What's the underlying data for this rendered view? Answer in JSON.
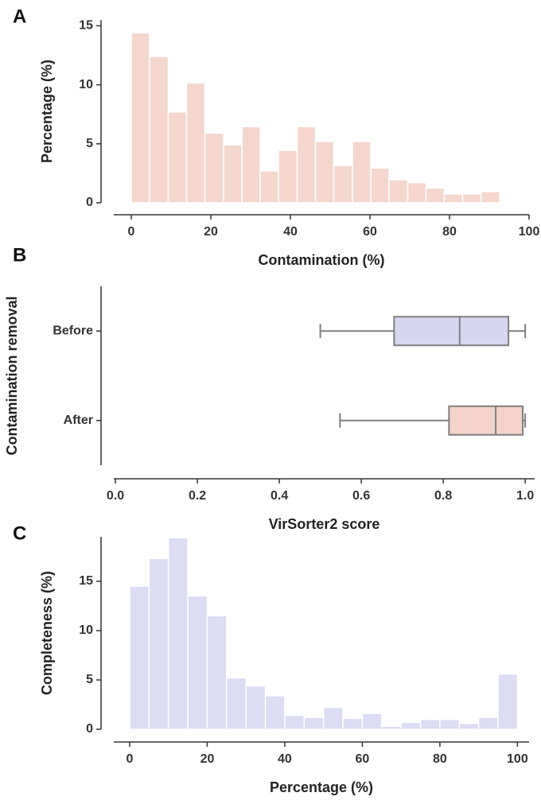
{
  "chart_data": [
    {
      "type": "histogram",
      "panel": "A",
      "xlabel": "Contamination (%)",
      "ylabel": "Percentage (%)",
      "color": "#f5d6cd",
      "bins": [
        0,
        4.6,
        9.3,
        13.9,
        18.5,
        23.2,
        27.8,
        32.4,
        37.0,
        41.7,
        46.3,
        50.9,
        55.6,
        60.2,
        64.8,
        69.5,
        74.1,
        78.7,
        83.3,
        88.0,
        92.6
      ],
      "values": [
        14.4,
        12.4,
        7.7,
        10.15,
        5.9,
        4.9,
        6.45,
        2.7,
        4.45,
        6.45,
        5.2,
        3.15,
        5.2,
        2.95,
        1.95,
        1.7,
        1.25,
        0.75,
        0.75,
        0.95
      ],
      "xlim": [
        -4.4,
        100
      ],
      "xticks": [
        0,
        20,
        40,
        60,
        80,
        100
      ],
      "ylim": [
        0,
        15.5
      ],
      "yticks": [
        0,
        5,
        10,
        15
      ]
    },
    {
      "type": "box",
      "panel": "B",
      "xlabel": "VirSorter2 score",
      "ylabel": "Contamination removal",
      "categories": [
        "Before",
        "After"
      ],
      "colors": [
        "#d6d5f2",
        "#f2d2c9"
      ],
      "values": [
        {
          "min": 0.5,
          "q1": 0.68,
          "median": 0.84,
          "q3": 0.959,
          "max": 1.0
        },
        {
          "min": 0.548,
          "q1": 0.814,
          "median": 0.928,
          "q3": 0.994,
          "max": 1.0
        }
      ],
      "xlim": [
        -0.004,
        1.023
      ],
      "xticks": [
        {
          "value": 0,
          "label": "0.0"
        },
        0.2,
        0.4,
        0.6,
        0.8,
        {
          "value": 1,
          "label": "1.0"
        }
      ]
    },
    {
      "type": "histogram",
      "panel": "C",
      "xlabel": "Percentage (%)",
      "ylabel": "Completeness (%)",
      "color": "#dcdcf5",
      "bins": [
        0,
        5,
        10,
        15,
        20,
        25,
        30,
        35,
        40,
        45,
        50,
        55,
        60,
        65,
        70,
        75,
        80,
        85,
        90,
        95,
        100
      ],
      "values": [
        14.5,
        17.3,
        19.4,
        13.5,
        11.5,
        5.2,
        4.4,
        3.4,
        1.4,
        1.2,
        2.2,
        1.1,
        1.6,
        0.3,
        0.7,
        1.0,
        1.0,
        0.6,
        1.2,
        5.6
      ],
      "xlim": [
        -4.1,
        103
      ],
      "xticks": [
        0,
        20,
        40,
        60,
        80,
        100
      ],
      "ylim": [
        0,
        19.5
      ],
      "yticks": [
        0,
        5,
        10,
        15
      ]
    }
  ]
}
